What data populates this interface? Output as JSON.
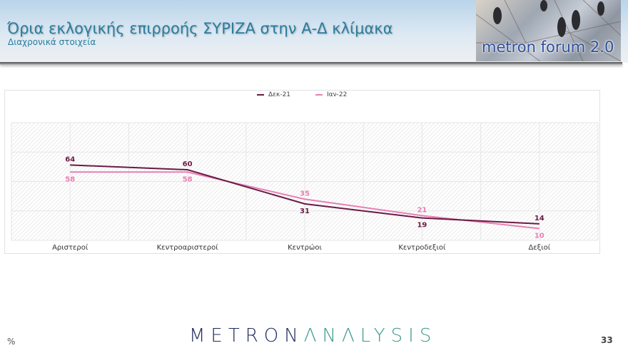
{
  "header": {
    "title": "Όρια εκλογικής επιρροής ΣΥΡΙΖΑ στην Α-Δ κλίμακα",
    "subtitle": "Διαχρονικά στοιχεία",
    "logo_text": "metron forum 2.0"
  },
  "footer": {
    "unit": "%",
    "brand_part1": "METRON",
    "brand_part2": "ΛNΛLYSIS",
    "page_number": "33"
  },
  "colors": {
    "title": "#2a7d9c",
    "series_dec21": "#6b1a45",
    "series_jan22": "#e87fb5",
    "brand_dark": "#1f2a5c",
    "brand_teal": "#3e9b8c"
  },
  "chart_data": {
    "type": "line",
    "title": "Όρια εκλογικής επιρροής ΣΥΡΙΖΑ στην Α-Δ κλίμακα",
    "subtitle": "Διαχρονικά στοιχεία",
    "xlabel": "",
    "ylabel": "%",
    "ylim": [
      0,
      100
    ],
    "grid": true,
    "legend_position": "top",
    "categories": [
      "Αριστεροί",
      "Κεντροαριστεροί",
      "Κεντρώοι",
      "Κεντροδεξιοί",
      "Δεξιοί"
    ],
    "series": [
      {
        "name": "Δεκ-21",
        "color": "#6b1a45",
        "values": [
          64,
          60,
          31,
          19,
          14
        ]
      },
      {
        "name": "Ιαν-22",
        "color": "#e87fb5",
        "values": [
          58,
          58,
          35,
          21,
          10
        ]
      }
    ]
  }
}
